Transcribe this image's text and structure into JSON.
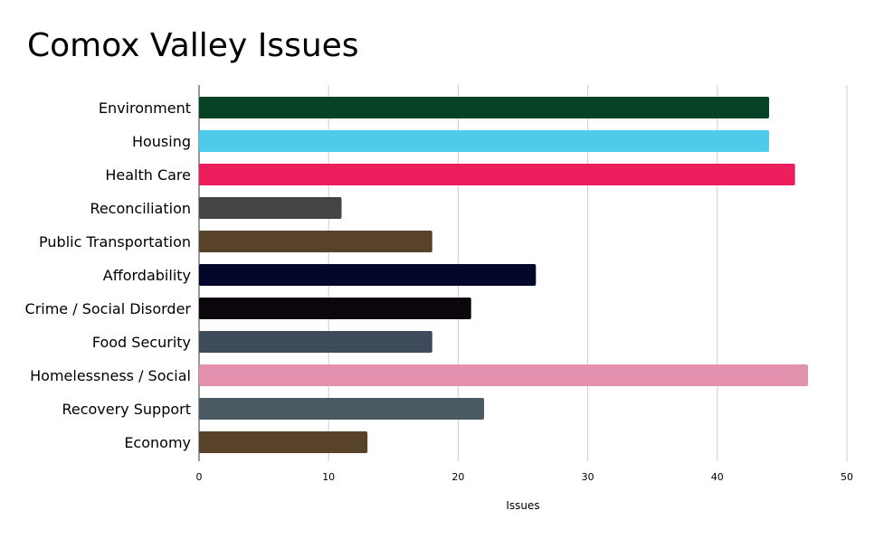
{
  "chart_data": {
    "type": "bar",
    "orientation": "horizontal",
    "title": "Comox Valley Issues",
    "xlabel": "Issues",
    "ylabel": "",
    "categories": [
      "Environment",
      "Housing",
      "Health Care",
      "Reconciliation",
      "Public Transportation",
      "Affordability",
      "Crime / Social Disorder",
      "Food Security",
      "Homelessness / Social",
      "Recovery Support",
      "Economy"
    ],
    "values": [
      44,
      44,
      46,
      11,
      18,
      26,
      21,
      18,
      47,
      22,
      13
    ],
    "colors": [
      "#074227",
      "#4ecbea",
      "#ed1e5e",
      "#444444",
      "#59422a",
      "#04062a",
      "#0a060c",
      "#3e4b5a",
      "#e390af",
      "#4b5a62",
      "#59422a"
    ],
    "xlim": [
      0,
      50
    ],
    "xticks": [
      0,
      10,
      20,
      30,
      40,
      50
    ],
    "grid": true,
    "legend": "none"
  }
}
